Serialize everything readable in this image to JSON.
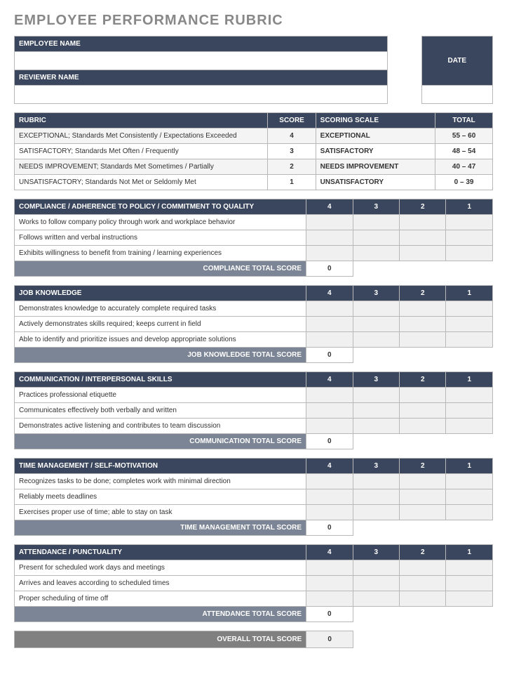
{
  "title": "EMPLOYEE PERFORMANCE RUBRIC",
  "header": {
    "employee_label": "EMPLOYEE NAME",
    "reviewer_label": "REVIEWER NAME",
    "date_label": "DATE",
    "employee_value": "",
    "reviewer_value": "",
    "date_value": ""
  },
  "rubric": {
    "col_rubric": "RUBRIC",
    "col_score": "SCORE",
    "col_scale": "SCORING SCALE",
    "col_total": "TOTAL",
    "rows": [
      {
        "desc": "EXCEPTIONAL; Standards Met Consistently / Expectations Exceeded",
        "score": "4",
        "scale": "EXCEPTIONAL",
        "total": "55 – 60"
      },
      {
        "desc": "SATISFACTORY; Standards Met Often / Frequently",
        "score": "3",
        "scale": "SATISFACTORY",
        "total": "48 – 54"
      },
      {
        "desc": "NEEDS IMPROVEMENT; Standards Met Sometimes / Partially",
        "score": "2",
        "scale": "NEEDS IMPROVEMENT",
        "total": "40 – 47"
      },
      {
        "desc": "UNSATISFACTORY; Standards Not Met or Seldomly Met",
        "score": "1",
        "scale": "UNSATISFACTORY",
        "total": "0 – 39"
      }
    ]
  },
  "score_headers": [
    "4",
    "3",
    "2",
    "1"
  ],
  "sections": [
    {
      "title": "COMPLIANCE / ADHERENCE TO POLICY / COMMITMENT TO QUALITY",
      "items": [
        "Works to follow company policy through work and workplace behavior",
        "Follows written and verbal instructions",
        "Exhibits willingness to benefit from training / learning experiences"
      ],
      "total_label": "COMPLIANCE TOTAL SCORE",
      "total_value": "0"
    },
    {
      "title": "JOB KNOWLEDGE",
      "items": [
        "Demonstrates knowledge to accurately complete required tasks",
        "Actively demonstrates skills required; keeps current in field",
        "Able to identify and prioritize issues and develop appropriate solutions"
      ],
      "total_label": "JOB KNOWLEDGE TOTAL SCORE",
      "total_value": "0"
    },
    {
      "title": "COMMUNICATION / INTERPERSONAL SKILLS",
      "items": [
        "Practices professional etiquette",
        "Communicates effectively both verbally and written",
        "Demonstrates active listening and contributes to team discussion"
      ],
      "total_label": "COMMUNICATION TOTAL SCORE",
      "total_value": "0"
    },
    {
      "title": "TIME MANAGEMENT / SELF-MOTIVATION",
      "items": [
        "Recognizes tasks to be done; completes work with minimal direction",
        "Reliably meets deadlines",
        "Exercises proper use of time; able to stay on task"
      ],
      "total_label": "TIME MANAGEMENT TOTAL SCORE",
      "total_value": "0"
    },
    {
      "title": "ATTENDANCE / PUNCTUALITY",
      "items": [
        "Present for scheduled work days and meetings",
        "Arrives and leaves according to scheduled times",
        "Proper scheduling of time off"
      ],
      "total_label": "ATTENDANCE TOTAL SCORE",
      "total_value": "0"
    }
  ],
  "overall": {
    "label": "OVERALL TOTAL SCORE",
    "value": "0"
  },
  "colors": {
    "header_bg": "#3a465d",
    "subheader_bg": "#7c8595",
    "overall_bg": "#808080",
    "border": "#b8b8b8",
    "alt_row": "#f4f4f4",
    "score_cell": "#f0f0f0",
    "title_color": "#888888"
  }
}
